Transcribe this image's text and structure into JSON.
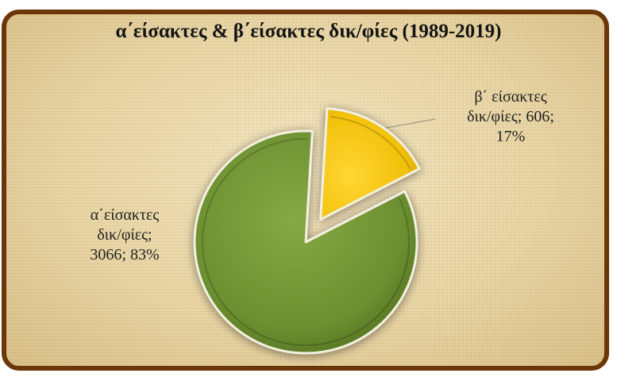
{
  "chart_data": {
    "type": "pie",
    "title": "α΄είσακτες & β΄είσακτες δικ/φίες (1989-2019)",
    "slices": [
      {
        "name": "α΄είσακτες δικ/φίες",
        "value": 3066,
        "percent": "83%",
        "label_lines": [
          "α΄είσακτες",
          "δικ/φίες;",
          "3066; 83%"
        ],
        "color": "#6f9232"
      },
      {
        "name": "β΄ είσακτες δικ/φίες",
        "value": 606,
        "percent": "17%",
        "label_lines": [
          "β΄ είσακτες",
          "δικ/φίες; 606;",
          "17%"
        ],
        "color": "#f2c20b"
      }
    ],
    "exploded": "β΄ είσακτες δικ/φίες",
    "legend": "none"
  },
  "colors": {
    "frame_border": "#6b3608",
    "background": "#efdfb4"
  }
}
